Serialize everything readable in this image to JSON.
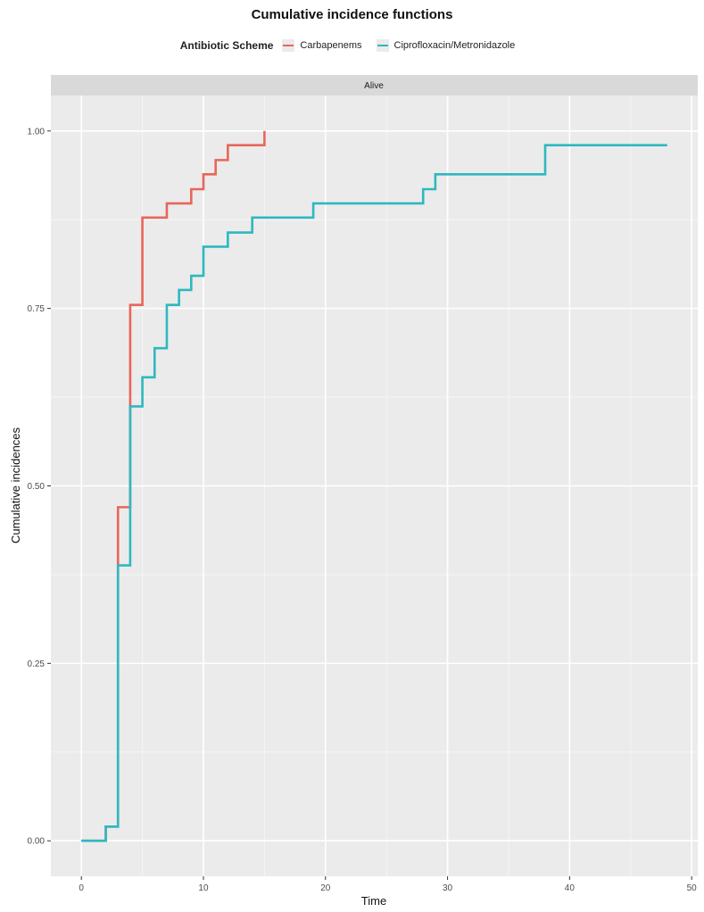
{
  "chart_data": {
    "type": "line",
    "title": "Cumulative incidence functions",
    "legend_title": "Antibiotic Scheme",
    "facet_label": "Alive",
    "xlabel": "Time",
    "ylabel": "Cumulative incidences",
    "xlim": [
      -2.5,
      50.5
    ],
    "ylim": [
      -0.05,
      1.05
    ],
    "x_ticks": [
      0,
      10,
      20,
      30,
      40,
      50
    ],
    "y_ticks": [
      0.0,
      0.25,
      0.5,
      0.75,
      1.0
    ],
    "x_tick_labels": [
      "0",
      "10",
      "20",
      "30",
      "40",
      "50"
    ],
    "y_tick_labels": [
      "0.00",
      "0.25",
      "0.50",
      "0.75",
      "1.00"
    ],
    "series": [
      {
        "name": "Carbapenems",
        "color": "#e8665a",
        "step": true,
        "x": [
          0,
          2,
          3,
          4,
          5,
          7,
          9,
          10,
          11,
          12,
          15
        ],
        "y": [
          0.0,
          0.02,
          0.47,
          0.755,
          0.878,
          0.898,
          0.918,
          0.939,
          0.959,
          0.98,
          1.0
        ]
      },
      {
        "name": "Ciprofloxacin/Metronidazole",
        "color": "#2eb8c0",
        "step": true,
        "x": [
          0,
          2,
          3,
          4,
          5,
          6,
          7,
          8,
          9,
          10,
          12,
          14,
          19,
          28,
          29,
          38,
          48
        ],
        "y": [
          0.0,
          0.02,
          0.388,
          0.612,
          0.653,
          0.694,
          0.755,
          0.776,
          0.796,
          0.837,
          0.857,
          0.878,
          0.898,
          0.918,
          0.939,
          0.98,
          0.98
        ]
      }
    ]
  }
}
